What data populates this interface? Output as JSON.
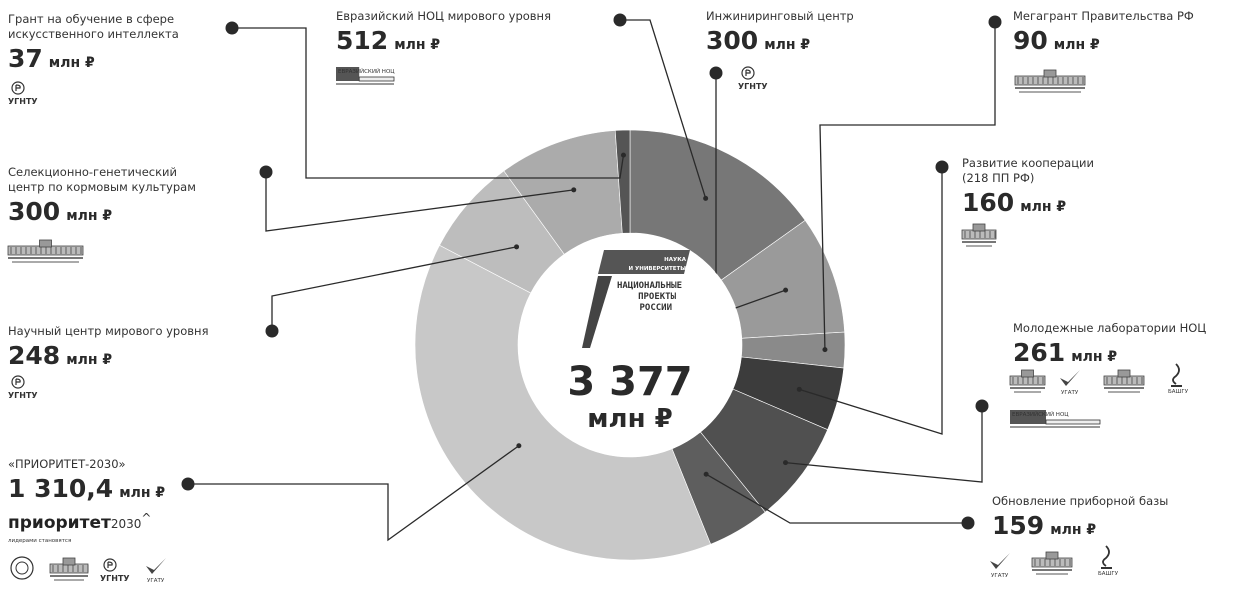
{
  "center": {
    "total": "3 377",
    "unit": "млн ₽",
    "logo_line1": "НАУКА",
    "logo_line2": "И УНИВЕРСИТЕТЫ",
    "logo_big1": "НАЦИОНАЛЬНЫЕ",
    "logo_big2": "ПРОЕКТЫ",
    "logo_big3": "РОССИИ"
  },
  "orgs": {
    "ugntu": "УГНТУ",
    "ugatu": "УГАТУ",
    "bashgu": "БАШГУ",
    "noc": "ЕВРАЗИЙСКИЙ НОЦ"
  },
  "priority": {
    "brand_bold": "приоритет",
    "brand_light": "2030",
    "brand_mark": "^",
    "tagline": "лидерами становятся"
  },
  "chart_data": {
    "type": "pie",
    "donut": true,
    "total": 3377,
    "unit": "млн ₽",
    "colors": {
      "noc": "#777777",
      "eng": "#9a9a9a",
      "mega": "#8a8a8a",
      "coop": "#3c3c3c",
      "youth": "#505050",
      "update": "#5e5e5e",
      "priority": "#c8c8c8",
      "science": "#bdbdbd",
      "selection": "#ababab",
      "grant": "#555555"
    },
    "slices": [
      {
        "key": "noc",
        "label": "Евразийский НОЦ мирового уровня",
        "label_lines": [
          "Евразийский НОЦ мирового уровня"
        ],
        "value": 512,
        "value_text": "512",
        "color_key": "noc"
      },
      {
        "key": "eng",
        "label": "Инжиниринговый центр",
        "label_lines": [
          "Инжиниринговый центр"
        ],
        "value": 300,
        "value_text": "300",
        "color_key": "eng"
      },
      {
        "key": "mega",
        "label": "Мегагрант Правительства РФ",
        "label_lines": [
          "Мегагрант Правительства РФ"
        ],
        "value": 90,
        "value_text": "90",
        "color_key": "mega"
      },
      {
        "key": "coop",
        "label": "Развитие кооперации (218 ПП РФ)",
        "label_lines": [
          "Развитие кооперации",
          "(218 ПП РФ)"
        ],
        "value": 160,
        "value_text": "160",
        "color_key": "coop"
      },
      {
        "key": "youth",
        "label": "Молодежные лаборатории НОЦ",
        "label_lines": [
          "Молодежные лаборатории НОЦ"
        ],
        "value": 261,
        "value_text": "261",
        "color_key": "youth"
      },
      {
        "key": "update",
        "label": "Обновление приборной базы",
        "label_lines": [
          "Обновление приборной базы"
        ],
        "value": 159,
        "value_text": "159",
        "color_key": "update"
      },
      {
        "key": "priority",
        "label": "«ПРИОРИТЕТ-2030»",
        "label_lines": [
          "«ПРИОРИТЕТ-2030»"
        ],
        "value": 1310.4,
        "value_text": "1 310,4",
        "color_key": "priority"
      },
      {
        "key": "science",
        "label": "Научный центр мирового уровня",
        "label_lines": [
          "Научный центр мирового уровня"
        ],
        "value": 248,
        "value_text": "248",
        "color_key": "science"
      },
      {
        "key": "selection",
        "label": "Селекционно-генетический центр по кормовым культурам",
        "label_lines": [
          "Селекционно-генетический",
          "центр по кормовым культурам"
        ],
        "value": 300,
        "value_text": "300",
        "color_key": "selection"
      },
      {
        "key": "grant",
        "label": "Грант на обучение в сфере искусственного интеллекта",
        "label_lines": [
          "Грант на обучение в сфере",
          "искусственного интеллекта"
        ],
        "value": 37,
        "value_text": "37",
        "color_key": "grant"
      }
    ]
  }
}
